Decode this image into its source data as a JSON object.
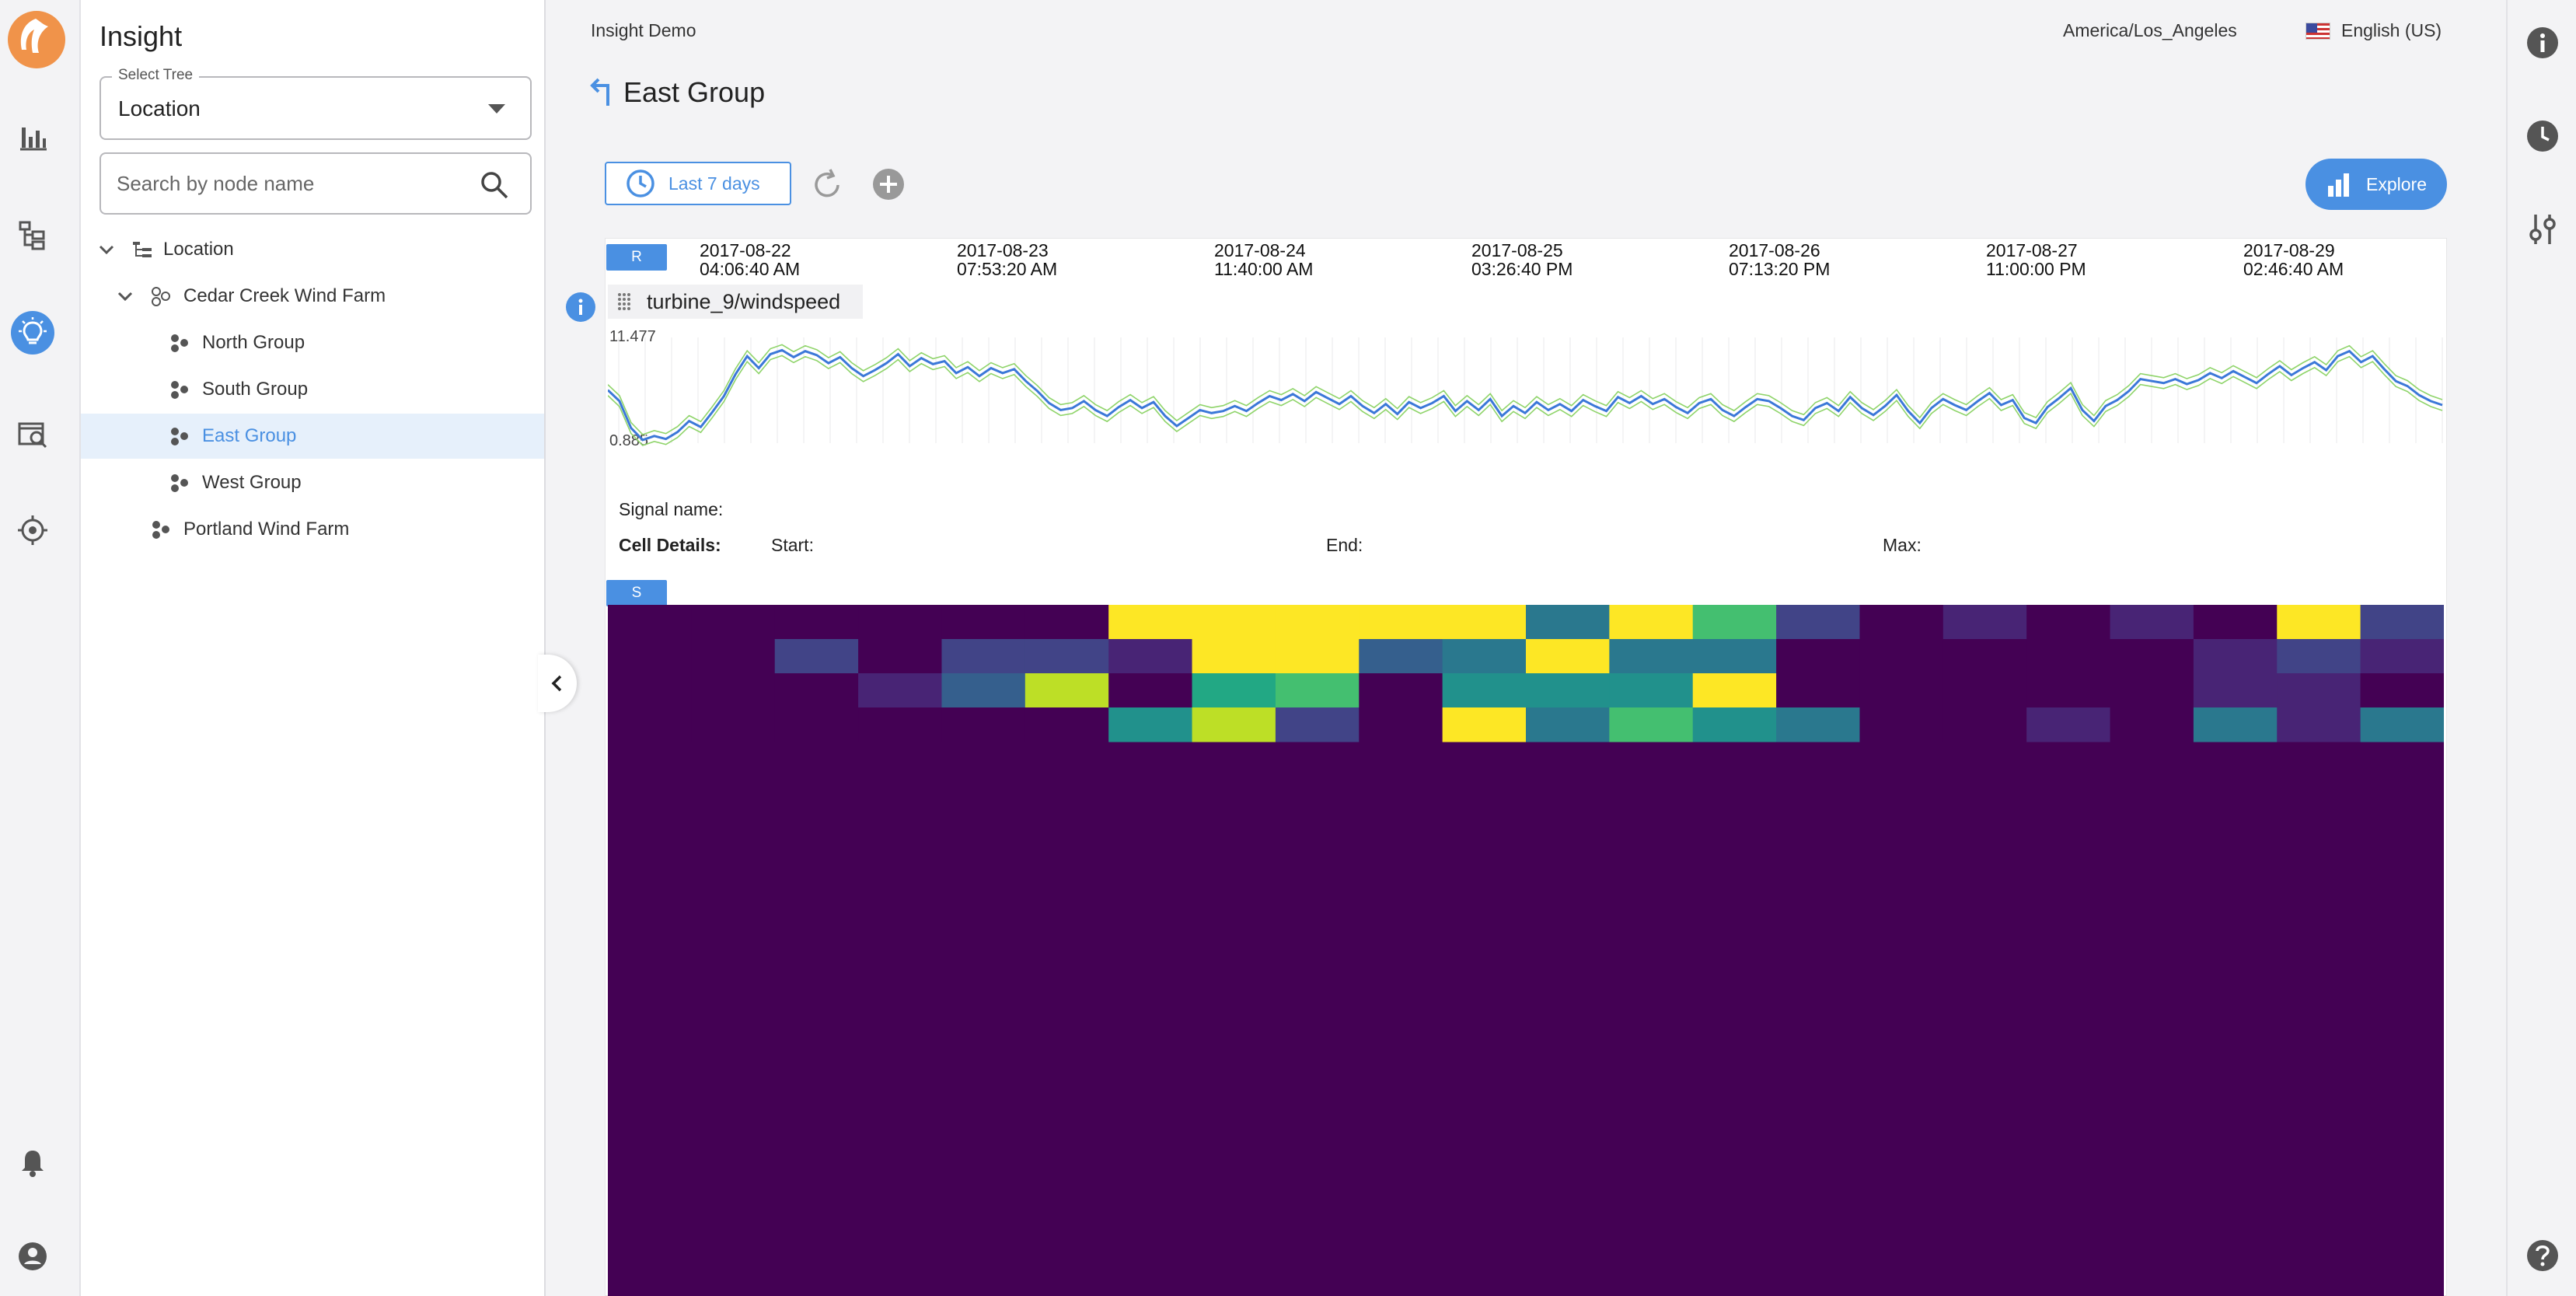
{
  "app": {
    "title": "Insight"
  },
  "sidebar": {
    "select_tree": {
      "legend": "Select Tree",
      "value": "Location"
    },
    "search": {
      "placeholder": "Search by node name"
    },
    "tree": [
      {
        "label": "Location",
        "icon": "hierarchy-icon",
        "expanded": true
      },
      {
        "label": "Cedar Creek Wind Farm",
        "icon": "group-nodes-icon",
        "expanded": true
      },
      {
        "label": "North Group",
        "icon": "cluster-icon"
      },
      {
        "label": "South Group",
        "icon": "cluster-icon"
      },
      {
        "label": "East Group",
        "icon": "cluster-icon",
        "selected": true
      },
      {
        "label": "West Group",
        "icon": "cluster-icon"
      },
      {
        "label": "Portland Wind Farm",
        "icon": "cluster-icon"
      }
    ]
  },
  "rail": {
    "icons": [
      "logo-icon",
      "bar-chart-icon",
      "tree-icon",
      "lightbulb-icon",
      "media-search-icon",
      "target-icon",
      "bell-icon",
      "account-icon"
    ],
    "active": "lightbulb-icon"
  },
  "topbar": {
    "title": "Insight Demo",
    "timezone": "America/Los_Angeles",
    "language": "English (US)"
  },
  "page": {
    "title": "East Group",
    "timeframe_label": "Last 7 days",
    "explore_label": "Explore"
  },
  "timeline": {
    "range_tag": "R",
    "ticks": [
      {
        "date": "2017-08-22",
        "time": "04:06:40 AM"
      },
      {
        "date": "2017-08-23",
        "time": "07:53:20 AM"
      },
      {
        "date": "2017-08-24",
        "time": "11:40:00 AM"
      },
      {
        "date": "2017-08-25",
        "time": "03:26:40 PM"
      },
      {
        "date": "2017-08-26",
        "time": "07:13:20 PM"
      },
      {
        "date": "2017-08-27",
        "time": "11:00:00 PM"
      },
      {
        "date": "2017-08-29",
        "time": "02:46:40 AM"
      }
    ]
  },
  "signal": {
    "name": "turbine_9/windspeed",
    "y_max": "11.477",
    "y_min": "0.885"
  },
  "details": {
    "signal_name_label": "Signal name:",
    "cell_details_label": "Cell Details:",
    "start_label": "Start:",
    "end_label": "End:",
    "max_label": "Max:"
  },
  "heatmap_tag": "S",
  "colors": {
    "accent": "#4a90e2",
    "viridis_dark": "#440154",
    "viridis_yellow": "#fde725",
    "line_main": "#3b78d8",
    "line_band": "#8fd46a"
  },
  "chart_data": {
    "type": "line",
    "title": "",
    "xlabel": "",
    "ylabel": "",
    "ylim": [
      0.885,
      11.477
    ],
    "series": [
      {
        "name": "turbine_9/windspeed",
        "values": [
          6.2,
          5.1,
          2.4,
          1.2,
          1.6,
          1.3,
          2.0,
          3.1,
          2.5,
          4.0,
          5.6,
          7.8,
          9.6,
          8.4,
          9.8,
          10.2,
          9.5,
          10.1,
          9.7,
          8.9,
          9.5,
          8.4,
          7.6,
          8.2,
          8.9,
          9.8,
          8.6,
          9.4,
          8.8,
          9.1,
          7.9,
          8.5,
          7.6,
          8.4,
          7.9,
          8.3,
          7.1,
          6.1,
          4.9,
          4.2,
          4.4,
          5.1,
          4.2,
          3.6,
          4.5,
          5.2,
          4.4,
          5.0,
          3.6,
          2.6,
          3.4,
          4.2,
          3.9,
          4.1,
          4.6,
          4.1,
          4.9,
          5.6,
          5.2,
          5.8,
          5.1,
          6.0,
          5.4,
          4.8,
          5.6,
          4.6,
          3.9,
          4.8,
          3.8,
          5.0,
          4.4,
          4.9,
          5.6,
          4.1,
          5.1,
          4.2,
          5.3,
          3.6,
          4.6,
          3.9,
          5.0,
          4.2,
          4.8,
          4.1,
          5.2,
          4.6,
          4.1,
          5.5,
          4.9,
          5.6,
          4.8,
          5.3,
          4.5,
          3.9,
          4.9,
          5.3,
          4.2,
          3.6,
          4.5,
          5.3,
          5.1,
          4.4,
          3.6,
          3.2,
          4.4,
          4.9,
          4.1,
          5.5,
          4.4,
          3.7,
          4.6,
          5.7,
          4.1,
          2.9,
          4.4,
          5.3,
          4.7,
          4.2,
          5.1,
          5.9,
          4.7,
          5.2,
          3.4,
          2.9,
          4.5,
          5.4,
          6.4,
          4.2,
          3.1,
          4.6,
          5.2,
          6.1,
          7.3,
          7.1,
          6.9,
          7.3,
          6.8,
          7.2,
          7.9,
          7.4,
          8.1,
          7.5,
          6.9,
          7.8,
          8.6,
          7.7,
          8.4,
          9.0,
          8.2,
          9.6,
          10.1,
          9.0,
          9.6,
          8.3,
          7.1,
          6.6,
          5.7,
          5.1,
          4.7
        ]
      }
    ]
  },
  "heatmap_data": {
    "columns": 22,
    "rows": 4,
    "cells": [
      [
        0,
        0,
        0,
        0,
        0,
        0,
        10,
        10,
        10,
        10,
        10,
        4,
        10,
        7,
        2,
        0,
        1,
        0,
        1,
        0,
        10,
        2
      ],
      [
        0,
        0,
        2,
        0,
        2,
        2,
        1,
        10,
        10,
        3,
        4,
        10,
        4,
        4,
        0,
        0,
        0,
        0,
        0,
        1,
        2,
        1
      ],
      [
        0,
        0,
        0,
        1,
        3,
        9,
        0,
        6,
        7,
        0,
        5,
        5,
        5,
        10,
        0,
        0,
        0,
        0,
        0,
        1,
        1,
        0
      ],
      [
        0,
        0,
        0,
        0,
        0,
        0,
        5,
        9,
        2,
        0,
        10,
        4,
        7,
        5,
        4,
        0,
        0,
        1,
        0,
        4,
        1,
        4
      ]
    ]
  },
  "right_rail": {
    "icons": [
      "info-icon",
      "history-icon",
      "tune-icon",
      "help-icon"
    ]
  }
}
